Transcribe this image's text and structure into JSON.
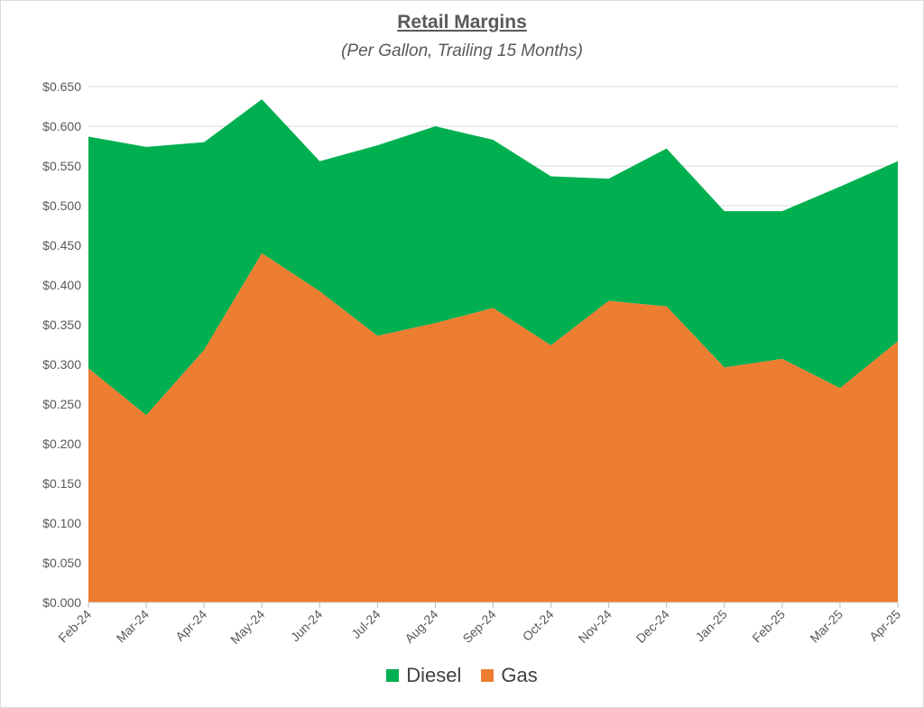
{
  "chart_data": {
    "type": "area",
    "stacked": true,
    "title": "Retail Margins",
    "subtitle": "(Per Gallon, Trailing 15 Months)",
    "xlabel": "",
    "ylabel": "",
    "categories": [
      "Feb-24",
      "Mar-24",
      "Apr-24",
      "May-24",
      "Jun-24",
      "Jul-24",
      "Aug-24",
      "Sep-24",
      "Oct-24",
      "Nov-24",
      "Dec-24",
      "Jan-25",
      "Feb-25",
      "Mar-25",
      "Apr-25"
    ],
    "ylim": [
      0,
      0.65
    ],
    "yticks": [
      "$0.000",
      "$0.050",
      "$0.100",
      "$0.150",
      "$0.200",
      "$0.250",
      "$0.300",
      "$0.350",
      "$0.400",
      "$0.450",
      "$0.500",
      "$0.550",
      "$0.600",
      "$0.650"
    ],
    "grid": true,
    "legend_position": "bottom",
    "series": [
      {
        "name": "Gas",
        "color": "#ed7d31",
        "values": [
          0.295,
          0.236,
          0.318,
          0.44,
          0.392,
          0.336,
          0.352,
          0.371,
          0.324,
          0.38,
          0.373,
          0.296,
          0.307,
          0.27,
          0.329
        ]
      },
      {
        "name": "Diesel",
        "color": "#00b050",
        "values": [
          0.292,
          0.338,
          0.262,
          0.194,
          0.164,
          0.24,
          0.248,
          0.212,
          0.213,
          0.154,
          0.199,
          0.197,
          0.186,
          0.254,
          0.227
        ]
      }
    ]
  },
  "legend": {
    "items": [
      {
        "label": "Diesel",
        "color": "#00b050"
      },
      {
        "label": "Gas",
        "color": "#ed7d31"
      }
    ]
  }
}
